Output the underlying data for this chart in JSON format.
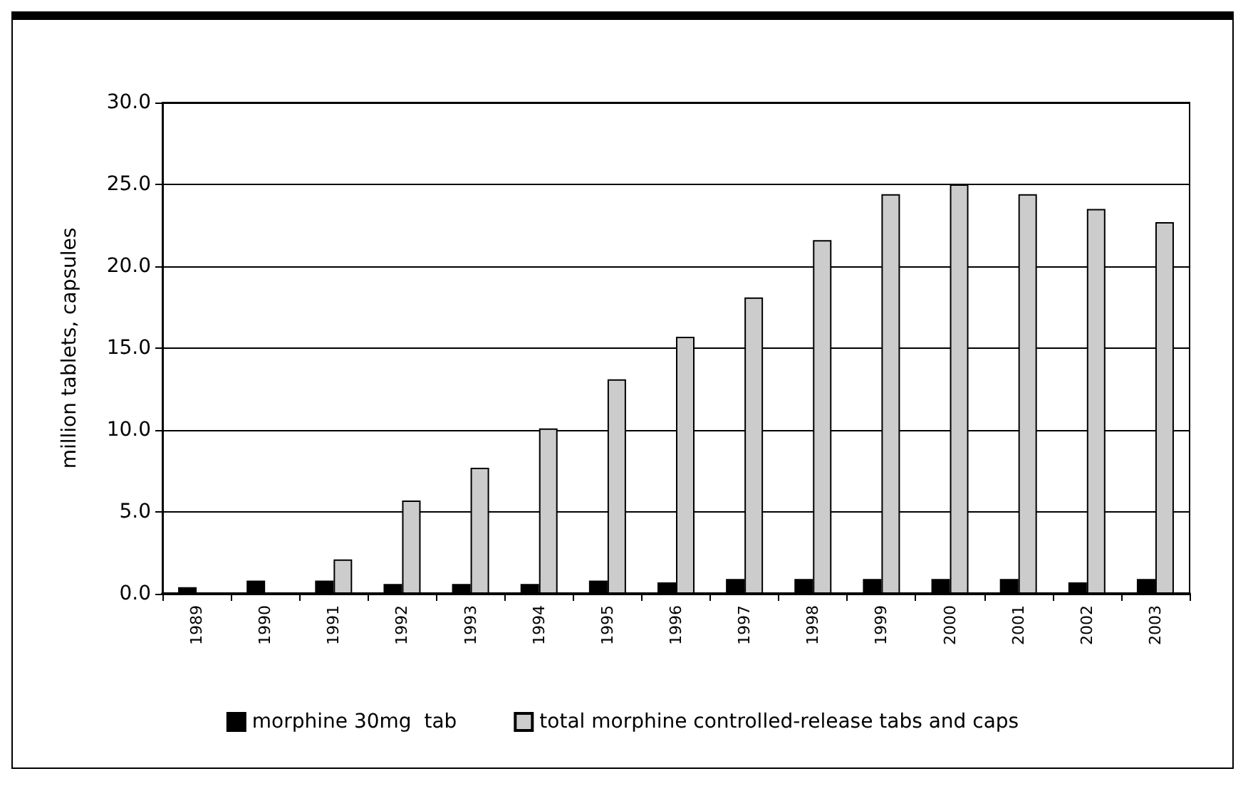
{
  "chart_data": {
    "type": "bar",
    "ylabel": "million tablets, capsules",
    "categories": [
      "1989",
      "1990",
      "1991",
      "1992",
      "1993",
      "1994",
      "1995",
      "1996",
      "1997",
      "1998",
      "1999",
      "2000",
      "2001",
      "2002",
      "2003"
    ],
    "series": [
      {
        "name": "morphine 30mg  tab",
        "color": "#000000",
        "values": [
          0.4,
          0.8,
          0.8,
          0.6,
          0.6,
          0.6,
          0.8,
          0.7,
          0.9,
          0.9,
          0.9,
          0.9,
          0.9,
          0.7,
          0.9
        ]
      },
      {
        "name": "total morphine controlled-release tabs and caps",
        "color": "#cccccc",
        "values": [
          null,
          null,
          2.1,
          5.7,
          7.7,
          10.1,
          13.1,
          15.7,
          18.1,
          21.6,
          24.4,
          25.0,
          24.4,
          23.5,
          22.7
        ]
      }
    ],
    "ylim": [
      0,
      30
    ],
    "yticks": [
      {
        "value": 0,
        "label": "0.0"
      },
      {
        "value": 5,
        "label": "5.0"
      },
      {
        "value": 10,
        "label": "10.0"
      },
      {
        "value": 15,
        "label": "15.0"
      },
      {
        "value": 20,
        "label": "20.0"
      },
      {
        "value": 25,
        "label": "25.0"
      },
      {
        "value": 30,
        "label": "30.0"
      }
    ],
    "grid": "y",
    "legend": "bottom"
  }
}
